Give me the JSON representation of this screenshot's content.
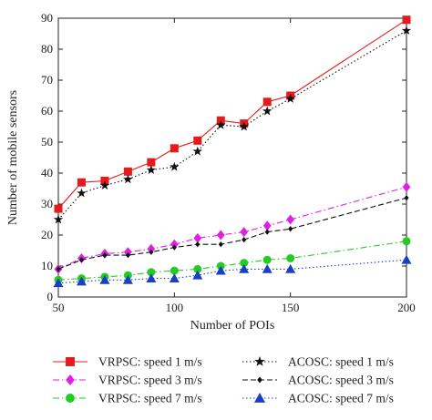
{
  "chart_data": {
    "type": "line",
    "xlabel": "Number of POIs",
    "ylabel": "Number of mobile sensors",
    "xlim": [
      50,
      200
    ],
    "ylim": [
      0,
      90
    ],
    "xticks": [
      50,
      100,
      150,
      200
    ],
    "yticks": [
      0,
      10,
      20,
      30,
      40,
      50,
      60,
      70,
      80,
      90
    ],
    "grid": false,
    "legend_placement": "bottom, outside plot, two columns",
    "x": [
      50,
      60,
      70,
      80,
      90,
      100,
      110,
      120,
      130,
      140,
      150,
      200
    ],
    "series": [
      {
        "name": "VRPSC: speed 1 m/s",
        "color": "#e41a1c",
        "marker": "square",
        "dash": "solid",
        "values": [
          28.5,
          37,
          37.5,
          40.5,
          43.5,
          48,
          50.5,
          57,
          56,
          63,
          65,
          89.5
        ]
      },
      {
        "name": "ACOSC: speed 1 m/s",
        "color": "#111111",
        "marker": "star",
        "dash": "dotted",
        "values": [
          25,
          33.5,
          36,
          38,
          41,
          42,
          47,
          55.5,
          55,
          60,
          64,
          86
        ]
      },
      {
        "name": "VRPSC: speed 3 m/s",
        "color": "#e020e0",
        "marker": "diamond",
        "dash": "dashdot",
        "values": [
          9,
          12.5,
          14,
          14.5,
          15.5,
          17,
          19,
          20,
          21,
          23,
          25,
          35.5
        ]
      },
      {
        "name": "ACOSC: speed 3 m/s",
        "color": "#111111",
        "marker": "small-diamond",
        "dash": "dashed",
        "values": [
          9,
          12,
          13.5,
          13.5,
          14.5,
          16,
          17,
          17,
          18.5,
          21,
          22,
          32
        ]
      },
      {
        "name": "VRPSC: speed 7 m/s",
        "color": "#22cc22",
        "marker": "circle",
        "dash": "dashdot",
        "values": [
          5.5,
          6,
          6.5,
          7,
          8,
          8.5,
          9,
          10,
          11,
          12,
          12.5,
          18
        ]
      },
      {
        "name": "ACOSC: speed 7 m/s",
        "color": "#1a3ec8",
        "marker": "triangle",
        "dash": "dotted",
        "values": [
          4.5,
          5,
          5.5,
          5.5,
          6,
          6,
          7,
          8.5,
          9,
          9,
          9,
          12
        ]
      }
    ]
  }
}
